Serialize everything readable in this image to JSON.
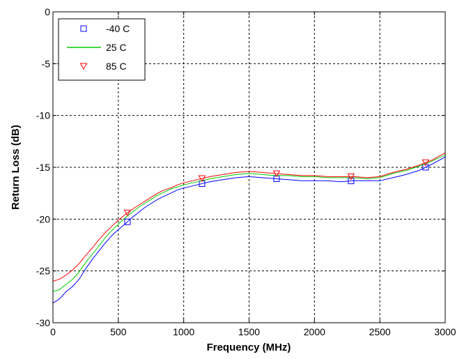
{
  "chart_data": {
    "type": "line",
    "title": "",
    "xlabel": "Frequency (MHz)",
    "ylabel": "Return Loss (dB)",
    "xlim": [
      0,
      3000
    ],
    "ylim": [
      -30,
      0
    ],
    "xticks": [
      "0",
      "500",
      "1000",
      "1500",
      "2000",
      "2500",
      "3000"
    ],
    "yticks": [
      "0",
      "-5",
      "-10",
      "-15",
      "-20",
      "-25",
      "-30"
    ],
    "grid": true,
    "legend_position": "top-left",
    "series": [
      {
        "name": "-40 C",
        "color": "#0000ff",
        "marker": "square",
        "marker_x": [
          570,
          1140,
          1710,
          2280,
          2850
        ],
        "x": [
          0,
          50,
          100,
          150,
          200,
          250,
          300,
          350,
          400,
          450,
          500,
          550,
          600,
          650,
          700,
          750,
          800,
          850,
          900,
          950,
          1000,
          1100,
          1200,
          1300,
          1400,
          1500,
          1600,
          1700,
          1800,
          1900,
          2000,
          2100,
          2200,
          2300,
          2400,
          2500,
          2600,
          2700,
          2800,
          2900,
          3000
        ],
        "y": [
          -28.1,
          -27.7,
          -27.0,
          -26.5,
          -25.8,
          -24.8,
          -23.9,
          -23.1,
          -22.3,
          -21.6,
          -21.0,
          -20.5,
          -19.9,
          -19.4,
          -18.9,
          -18.5,
          -18.1,
          -17.8,
          -17.5,
          -17.2,
          -17.0,
          -16.7,
          -16.4,
          -16.2,
          -16.0,
          -15.9,
          -16.0,
          -16.1,
          -16.2,
          -16.3,
          -16.3,
          -16.3,
          -16.4,
          -16.3,
          -16.3,
          -16.3,
          -16.0,
          -15.7,
          -15.3,
          -14.7,
          -14.0
        ]
      },
      {
        "name": "25 C",
        "color": "#00cc00",
        "marker": "none",
        "x": [
          0,
          50,
          100,
          150,
          200,
          250,
          300,
          350,
          400,
          450,
          500,
          550,
          600,
          650,
          700,
          750,
          800,
          850,
          900,
          950,
          1000,
          1100,
          1200,
          1300,
          1400,
          1500,
          1600,
          1700,
          1800,
          1900,
          2000,
          2100,
          2200,
          2300,
          2400,
          2500,
          2600,
          2700,
          2800,
          2900,
          3000
        ],
        "y": [
          -27.0,
          -26.8,
          -26.3,
          -25.8,
          -25.1,
          -24.2,
          -23.4,
          -22.6,
          -21.8,
          -21.1,
          -20.5,
          -19.9,
          -19.4,
          -18.9,
          -18.5,
          -18.1,
          -17.7,
          -17.4,
          -17.1,
          -16.9,
          -16.7,
          -16.4,
          -16.1,
          -15.9,
          -15.7,
          -15.6,
          -15.7,
          -15.8,
          -15.8,
          -15.9,
          -15.9,
          -16.0,
          -16.0,
          -16.0,
          -16.1,
          -16.0,
          -15.6,
          -15.3,
          -14.9,
          -14.4,
          -13.8
        ]
      },
      {
        "name": "85 C",
        "color": "#ff0000",
        "marker": "triangle-down",
        "marker_x": [
          570,
          1140,
          1710,
          2280,
          2850
        ],
        "x": [
          0,
          50,
          100,
          150,
          200,
          250,
          300,
          350,
          400,
          450,
          500,
          550,
          600,
          650,
          700,
          750,
          800,
          850,
          900,
          950,
          1000,
          1100,
          1200,
          1300,
          1400,
          1500,
          1600,
          1700,
          1800,
          1900,
          2000,
          2100,
          2200,
          2300,
          2400,
          2500,
          2600,
          2700,
          2800,
          2900,
          3000
        ],
        "y": [
          -26.0,
          -25.8,
          -25.4,
          -24.9,
          -24.3,
          -23.5,
          -22.8,
          -22.0,
          -21.3,
          -20.7,
          -20.1,
          -19.6,
          -19.1,
          -18.7,
          -18.3,
          -17.9,
          -17.5,
          -17.2,
          -17.0,
          -16.7,
          -16.5,
          -16.2,
          -15.9,
          -15.7,
          -15.5,
          -15.4,
          -15.5,
          -15.6,
          -15.7,
          -15.8,
          -15.8,
          -15.9,
          -15.9,
          -15.9,
          -16.0,
          -15.9,
          -15.5,
          -15.2,
          -14.8,
          -14.3,
          -13.6
        ]
      }
    ]
  }
}
